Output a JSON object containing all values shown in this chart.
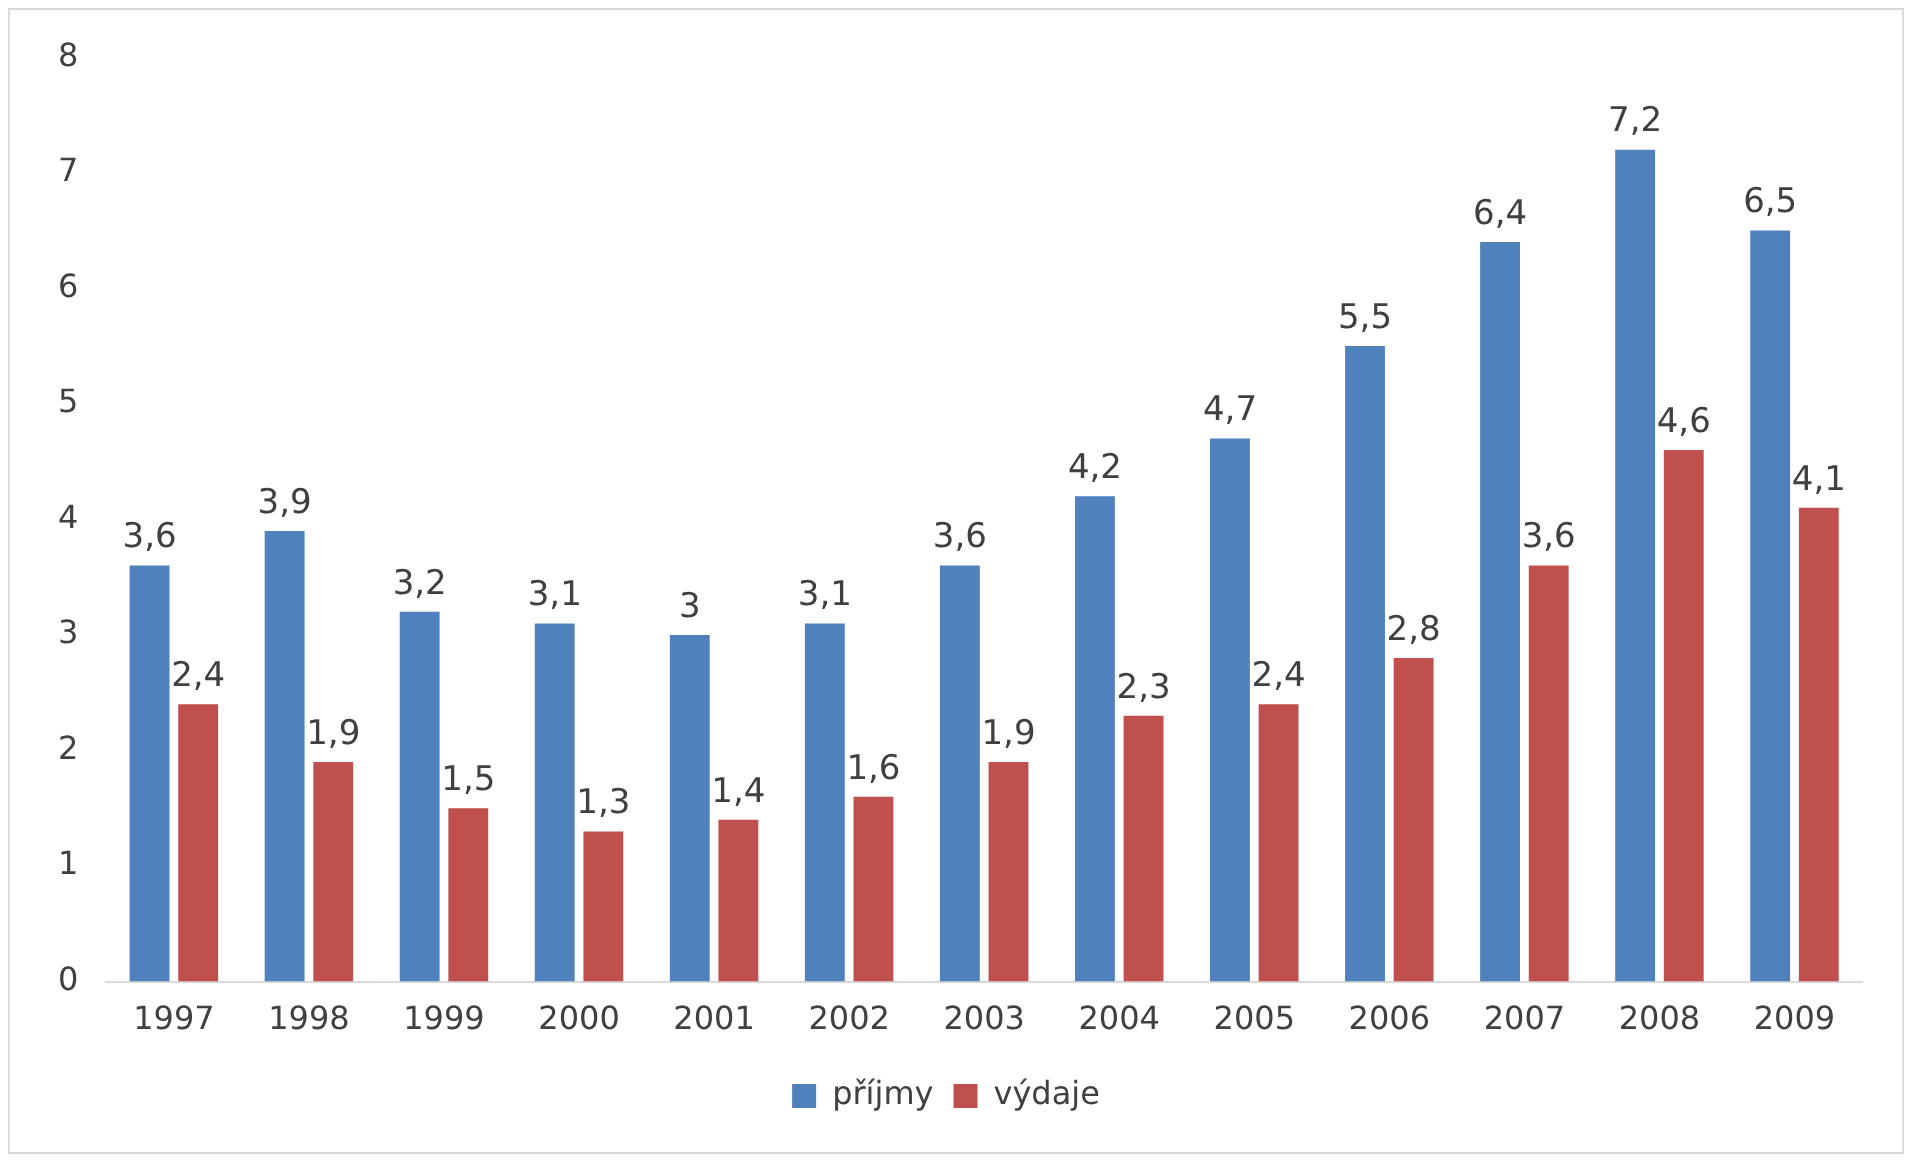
{
  "chart_data": {
    "type": "bar",
    "categories": [
      "1997",
      "1998",
      "1999",
      "2000",
      "2001",
      "2002",
      "2003",
      "2004",
      "2005",
      "2006",
      "2007",
      "2008",
      "2009"
    ],
    "series": [
      {
        "name": "příjmy",
        "color": "#4f81bd",
        "values": [
          3.6,
          3.9,
          3.2,
          3.1,
          3,
          3.1,
          3.6,
          4.2,
          4.7,
          5.5,
          6.4,
          7.2,
          6.5
        ],
        "value_labels": [
          "3,6",
          "3,9",
          "3,2",
          "3,1",
          "3",
          "3,1",
          "3,6",
          "4,2",
          "4,7",
          "5,5",
          "6,4",
          "7,2",
          "6,5"
        ]
      },
      {
        "name": "výdaje",
        "color": "#c0504d",
        "values": [
          2.4,
          1.9,
          1.5,
          1.3,
          1.4,
          1.6,
          1.9,
          2.3,
          2.4,
          2.8,
          3.6,
          4.6,
          4.1
        ],
        "value_labels": [
          "2,4",
          "1,9",
          "1,5",
          "1,3",
          "1,4",
          "1,6",
          "1,9",
          "2,3",
          "2,4",
          "2,8",
          "3,6",
          "4,6",
          "4,1"
        ]
      }
    ],
    "ylim": [
      0,
      8
    ],
    "yticks": [
      0,
      1,
      2,
      3,
      4,
      5,
      6,
      7,
      8
    ],
    "grid": false,
    "legend": "bottom"
  }
}
